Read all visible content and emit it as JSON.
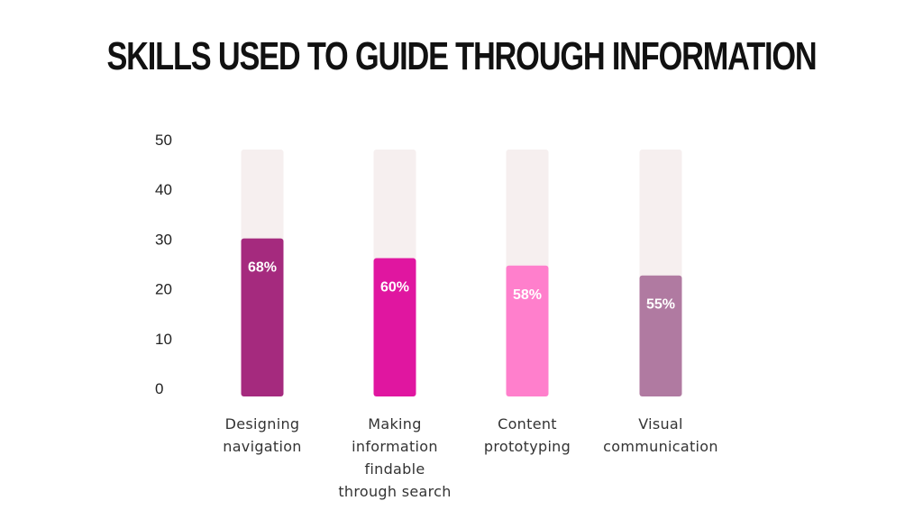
{
  "title": "SKILLS USED TO GUIDE THROUGH INFORMATION",
  "chart_data": {
    "type": "bar",
    "categories": [
      "Designing navigation",
      "Making information findable through search",
      "Content prototyping",
      "Visual communication"
    ],
    "category_lines": [
      [
        "Designing",
        "navigation"
      ],
      [
        "Making",
        "information",
        "findable",
        "through search"
      ],
      [
        "Content",
        "prototyping"
      ],
      [
        "Visual",
        "communication"
      ]
    ],
    "values": [
      32,
      28,
      26.5,
      24.5
    ],
    "data_labels": [
      "68%",
      "60%",
      "58%",
      "55%"
    ],
    "bar_colors": [
      "#a52a7e",
      "#e016a0",
      "#ff7fcc",
      "#b07aa1"
    ],
    "track_color": "#f6efef",
    "yticks": [
      0,
      10,
      20,
      30,
      40,
      50
    ],
    "ylim": [
      0,
      50
    ],
    "grid": false,
    "legend": "none",
    "xlabel": "",
    "ylabel": ""
  }
}
